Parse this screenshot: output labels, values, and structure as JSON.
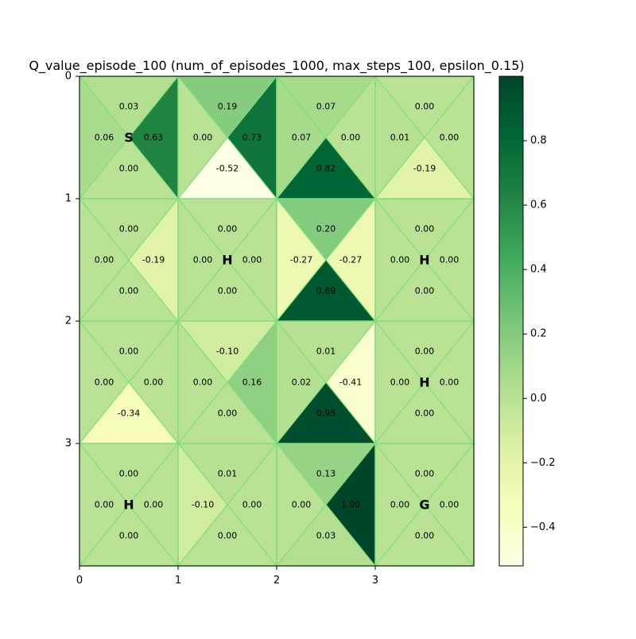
{
  "chart_data": {
    "type": "heatmap",
    "title": "Q_value_episode_100 (num_of_episodes_1000, max_steps_100, epsilon_0.15)",
    "colormap": "YlGn",
    "grid_rows": 4,
    "grid_cols": 4,
    "x_ticks": [
      "0",
      "1",
      "2",
      "3"
    ],
    "y_ticks": [
      "0",
      "1",
      "2",
      "3"
    ],
    "vmin": -0.52,
    "vmax": 1.0,
    "colorbar_ticks": [
      {
        "value": 0.8,
        "label": "0.8"
      },
      {
        "value": 0.6,
        "label": "0.6"
      },
      {
        "value": 0.4,
        "label": "0.4"
      },
      {
        "value": 0.2,
        "label": "0.2"
      },
      {
        "value": 0.0,
        "label": "0.0"
      },
      {
        "value": -0.2,
        "label": "−0.2"
      },
      {
        "value": -0.4,
        "label": "−0.4"
      }
    ],
    "cells": [
      {
        "row": 0,
        "col": 0,
        "label": "S",
        "up": 0.03,
        "left": 0.06,
        "right": 0.63,
        "down": 0.0
      },
      {
        "row": 0,
        "col": 1,
        "label": "",
        "up": 0.19,
        "left": 0.0,
        "right": 0.73,
        "down": -0.52
      },
      {
        "row": 0,
        "col": 2,
        "label": "",
        "up": 0.07,
        "left": 0.07,
        "right": 0.0,
        "down": 0.82
      },
      {
        "row": 0,
        "col": 3,
        "label": "",
        "up": 0.0,
        "left": 0.01,
        "right": 0.0,
        "down": -0.19
      },
      {
        "row": 1,
        "col": 0,
        "label": "",
        "up": 0.0,
        "left": 0.0,
        "right": -0.19,
        "down": 0.0
      },
      {
        "row": 1,
        "col": 1,
        "label": "H",
        "up": 0.0,
        "left": 0.0,
        "right": 0.0,
        "down": 0.0
      },
      {
        "row": 1,
        "col": 2,
        "label": "",
        "up": 0.2,
        "left": -0.27,
        "right": -0.27,
        "down": 0.89
      },
      {
        "row": 1,
        "col": 3,
        "label": "H",
        "up": 0.0,
        "left": 0.0,
        "right": 0.0,
        "down": 0.0
      },
      {
        "row": 2,
        "col": 0,
        "label": "",
        "up": 0.0,
        "left": 0.0,
        "right": 0.0,
        "down": -0.34
      },
      {
        "row": 2,
        "col": 1,
        "label": "",
        "up": -0.1,
        "left": 0.0,
        "right": 0.16,
        "down": 0.0
      },
      {
        "row": 2,
        "col": 2,
        "label": "",
        "up": 0.01,
        "left": 0.02,
        "right": -0.41,
        "down": 0.95
      },
      {
        "row": 2,
        "col": 3,
        "label": "H",
        "up": 0.0,
        "left": 0.0,
        "right": 0.0,
        "down": 0.0
      },
      {
        "row": 3,
        "col": 0,
        "label": "H",
        "up": 0.0,
        "left": 0.0,
        "right": 0.0,
        "down": 0.0
      },
      {
        "row": 3,
        "col": 1,
        "label": "",
        "up": 0.01,
        "left": -0.1,
        "right": 0.0,
        "down": 0.0
      },
      {
        "row": 3,
        "col": 2,
        "label": "",
        "up": 0.13,
        "left": 0.0,
        "right": 1.0,
        "down": 0.03
      },
      {
        "row": 3,
        "col": 3,
        "label": "G",
        "up": 0.0,
        "left": 0.0,
        "right": 0.0,
        "down": 0.0
      }
    ]
  },
  "colors": {
    "grid_line": "#7be07b",
    "axis": "#000000",
    "text": "#000000"
  }
}
